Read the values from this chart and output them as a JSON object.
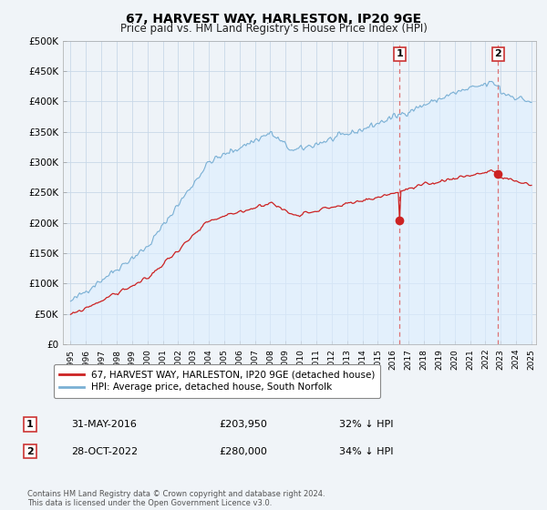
{
  "title": "67, HARVEST WAY, HARLESTON, IP20 9GE",
  "subtitle": "Price paid vs. HM Land Registry's House Price Index (HPI)",
  "hpi_color": "#7ab0d4",
  "hpi_fill_color": "#ddeeff",
  "price_color": "#cc2222",
  "dashed_color": "#dd6666",
  "background_color": "#f0f4f8",
  "plot_bg_color": "#eef3f8",
  "grid_color": "#c8d8e8",
  "ylim": [
    0,
    500000
  ],
  "yticks": [
    0,
    50000,
    100000,
    150000,
    200000,
    250000,
    300000,
    350000,
    400000,
    450000,
    500000
  ],
  "ytick_labels": [
    "£0",
    "£50K",
    "£100K",
    "£150K",
    "£200K",
    "£250K",
    "£300K",
    "£350K",
    "£400K",
    "£450K",
    "£500K"
  ],
  "xmin": 1995,
  "xmax": 2025,
  "legend_entry1": "67, HARVEST WAY, HARLESTON, IP20 9GE (detached house)",
  "legend_entry2": "HPI: Average price, detached house, South Norfolk",
  "annotation1_date": "31-MAY-2016",
  "annotation1_price": "£203,950",
  "annotation1_pct": "32% ↓ HPI",
  "annotation2_date": "28-OCT-2022",
  "annotation2_price": "£280,000",
  "annotation2_pct": "34% ↓ HPI",
  "footer": "Contains HM Land Registry data © Crown copyright and database right 2024.\nThis data is licensed under the Open Government Licence v3.0.",
  "point1_x": 2016.42,
  "point1_y": 203950,
  "point2_x": 2022.83,
  "point2_y": 280000
}
